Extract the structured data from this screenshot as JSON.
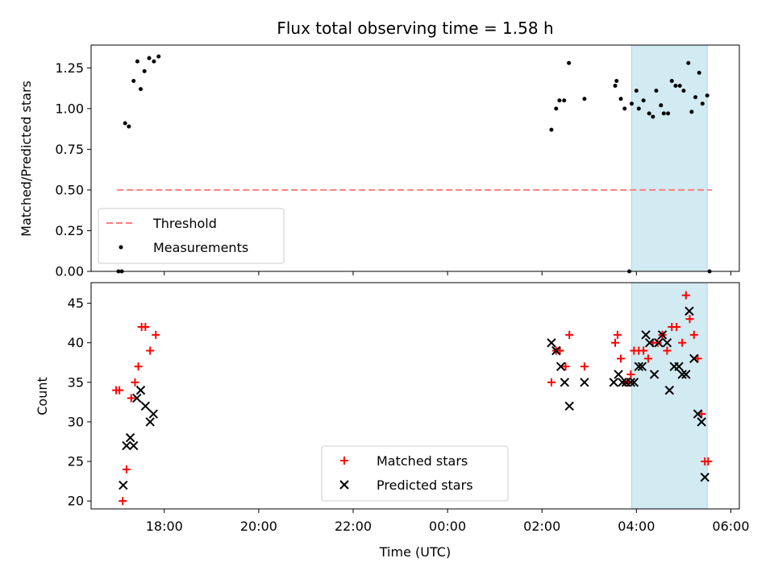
{
  "chart_data": [
    {
      "type": "scatter",
      "title": "Flux total observing time = 1.58 h",
      "xlabel": "",
      "ylabel": "Matched/Predicted stars",
      "x_unit": "hours since 00:00 UTC (day 1 evening negative)",
      "xlim": [
        -7.55,
        6.18
      ],
      "ylim": [
        0.0,
        1.39
      ],
      "yticks": [
        0.0,
        0.25,
        0.5,
        0.75,
        1.0,
        1.25
      ],
      "ytick_labels": [
        "0.00",
        "0.25",
        "0.50",
        "0.75",
        "1.00",
        "1.25"
      ],
      "xticks": [
        -6,
        -4,
        -2,
        0,
        2,
        4,
        6
      ],
      "shaded_span": {
        "x": [
          3.9,
          5.5
        ],
        "color": "#add8e6"
      },
      "threshold": {
        "label": "Threshold",
        "y": 0.5,
        "x": [
          -7.0,
          5.6
        ],
        "color": "#ff7f7f"
      },
      "series": [
        {
          "name": "Measurements",
          "marker": "dot",
          "color": "#000000",
          "points": [
            [
              -6.97,
              0.0
            ],
            [
              -6.9,
              0.0
            ],
            [
              -6.83,
              0.91
            ],
            [
              -6.75,
              0.89
            ],
            [
              -6.65,
              1.17
            ],
            [
              -6.57,
              1.29
            ],
            [
              -6.5,
              1.12
            ],
            [
              -6.42,
              1.23
            ],
            [
              -6.32,
              1.31
            ],
            [
              -6.22,
              1.29
            ],
            [
              -6.12,
              1.32
            ],
            [
              2.2,
              0.87
            ],
            [
              2.3,
              1.0
            ],
            [
              2.37,
              1.05
            ],
            [
              2.47,
              1.05
            ],
            [
              2.57,
              1.28
            ],
            [
              2.9,
              1.06
            ],
            [
              3.55,
              1.14
            ],
            [
              3.58,
              1.17
            ],
            [
              3.67,
              1.06
            ],
            [
              3.75,
              1.0
            ],
            [
              3.85,
              0.0
            ],
            [
              3.9,
              1.03
            ],
            [
              4.0,
              1.11
            ],
            [
              4.05,
              1.0
            ],
            [
              4.15,
              1.05
            ],
            [
              4.27,
              0.97
            ],
            [
              4.35,
              0.95
            ],
            [
              4.42,
              1.11
            ],
            [
              4.52,
              1.02
            ],
            [
              4.58,
              0.97
            ],
            [
              4.67,
              0.97
            ],
            [
              4.75,
              1.17
            ],
            [
              4.83,
              1.14
            ],
            [
              4.92,
              1.14
            ],
            [
              5.0,
              1.11
            ],
            [
              5.1,
              1.28
            ],
            [
              5.17,
              0.98
            ],
            [
              5.25,
              1.07
            ],
            [
              5.33,
              1.22
            ],
            [
              5.4,
              1.03
            ],
            [
              5.5,
              1.08
            ],
            [
              5.55,
              0.0
            ]
          ]
        }
      ],
      "legend": {
        "placement": "lower-left",
        "entries": [
          {
            "label": "Threshold",
            "marker": "dashed-line",
            "color": "#ff7f7f"
          },
          {
            "label": "Measurements",
            "marker": "dot",
            "color": "#000000"
          }
        ]
      }
    },
    {
      "type": "scatter",
      "title": "",
      "xlabel": "Time (UTC)",
      "ylabel": "Count",
      "x_unit": "hours since 00:00 UTC (day 1 evening negative)",
      "xlim": [
        -7.55,
        6.18
      ],
      "ylim": [
        19.0,
        47.6
      ],
      "yticks": [
        20,
        25,
        30,
        35,
        40,
        45
      ],
      "ytick_labels": [
        "20",
        "25",
        "30",
        "35",
        "40",
        "45"
      ],
      "xticks": [
        -6,
        -4,
        -2,
        0,
        2,
        4,
        6
      ],
      "xtick_labels": [
        "18:00",
        "20:00",
        "22:00",
        "00:00",
        "02:00",
        "04:00",
        "06:00"
      ],
      "shaded_span": {
        "x": [
          3.9,
          5.5
        ],
        "color": "#add8e6"
      },
      "series": [
        {
          "name": "Matched stars",
          "marker": "plus",
          "color": "#ff0000",
          "points": [
            [
              -7.02,
              34
            ],
            [
              -6.95,
              34
            ],
            [
              -6.88,
              20
            ],
            [
              -6.8,
              24
            ],
            [
              -6.7,
              33
            ],
            [
              -6.62,
              35
            ],
            [
              -6.55,
              37
            ],
            [
              -6.48,
              42
            ],
            [
              -6.4,
              42
            ],
            [
              -6.3,
              39
            ],
            [
              -6.18,
              41
            ],
            [
              2.2,
              35
            ],
            [
              2.3,
              39
            ],
            [
              2.38,
              39
            ],
            [
              2.5,
              37
            ],
            [
              2.58,
              41
            ],
            [
              2.9,
              37
            ],
            [
              3.55,
              40
            ],
            [
              3.6,
              41
            ],
            [
              3.67,
              38
            ],
            [
              3.77,
              35
            ],
            [
              3.83,
              35
            ],
            [
              3.88,
              36
            ],
            [
              3.95,
              39
            ],
            [
              4.05,
              39
            ],
            [
              4.15,
              39
            ],
            [
              4.25,
              38
            ],
            [
              4.35,
              40
            ],
            [
              4.45,
              40
            ],
            [
              4.55,
              41
            ],
            [
              4.65,
              39
            ],
            [
              4.75,
              42
            ],
            [
              4.85,
              42
            ],
            [
              4.97,
              40
            ],
            [
              5.05,
              46
            ],
            [
              5.13,
              43
            ],
            [
              5.22,
              41
            ],
            [
              5.3,
              38
            ],
            [
              5.38,
              31
            ],
            [
              5.45,
              25
            ],
            [
              5.52,
              25
            ]
          ]
        },
        {
          "name": "Predicted stars",
          "marker": "x",
          "color": "#000000",
          "points": [
            [
              -6.87,
              22
            ],
            [
              -6.8,
              27
            ],
            [
              -6.72,
              28
            ],
            [
              -6.65,
              27
            ],
            [
              -6.58,
              33
            ],
            [
              -6.5,
              34
            ],
            [
              -6.4,
              32
            ],
            [
              -6.3,
              30
            ],
            [
              -6.23,
              31
            ],
            [
              2.2,
              40
            ],
            [
              2.3,
              39
            ],
            [
              2.4,
              37
            ],
            [
              2.48,
              35
            ],
            [
              2.58,
              32
            ],
            [
              2.9,
              35
            ],
            [
              3.52,
              35
            ],
            [
              3.62,
              36
            ],
            [
              3.7,
              35
            ],
            [
              3.78,
              35
            ],
            [
              3.88,
              35
            ],
            [
              3.95,
              35
            ],
            [
              4.05,
              37
            ],
            [
              4.12,
              37
            ],
            [
              4.2,
              41
            ],
            [
              4.28,
              40
            ],
            [
              4.38,
              36
            ],
            [
              4.47,
              40
            ],
            [
              4.55,
              41
            ],
            [
              4.65,
              40
            ],
            [
              4.7,
              34
            ],
            [
              4.8,
              37
            ],
            [
              4.9,
              37
            ],
            [
              4.97,
              36
            ],
            [
              5.05,
              36
            ],
            [
              5.12,
              44
            ],
            [
              5.22,
              38
            ],
            [
              5.3,
              31
            ],
            [
              5.38,
              30
            ],
            [
              5.45,
              23
            ]
          ]
        }
      ],
      "legend": {
        "placement": "lower-center",
        "entries": [
          {
            "label": "Matched stars",
            "marker": "plus",
            "color": "#ff0000"
          },
          {
            "label": "Predicted stars",
            "marker": "x",
            "color": "#000000"
          }
        ]
      }
    }
  ]
}
